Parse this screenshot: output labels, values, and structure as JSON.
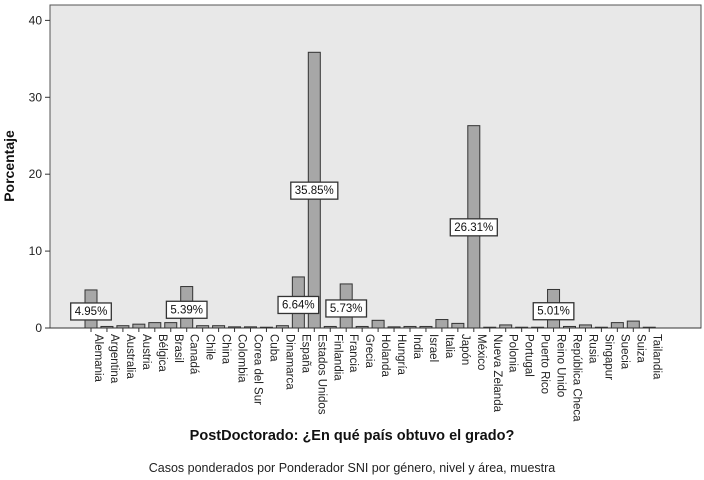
{
  "chart_data": {
    "type": "bar",
    "title": "",
    "xlabel": "PostDoctorado: ¿En qué país obtuvo el grado?",
    "ylabel": "Porcentaje",
    "footnote": "Casos ponderados por Ponderador SNI por género, nivel y área, muestra",
    "ylim": [
      0,
      42
    ],
    "yticks": [
      0,
      10,
      20,
      30,
      40
    ],
    "grid": false,
    "legend": "none",
    "bar_color": "#a7a7a7",
    "background_color": "#e8e8e8",
    "categories": [
      "Alemania",
      "Argentina",
      "Australia",
      "Austria",
      "Bélgica",
      "Brasil",
      "Canadá",
      "Chile",
      "China",
      "Colombia",
      "Corea del Sur",
      "Cuba",
      "Dinamarca",
      "España",
      "Estados Unidos",
      "Finlandia",
      "Francia",
      "Grecia",
      "Holanda",
      "Hungría",
      "India",
      "Israel",
      "Italia",
      "Japón",
      "México",
      "Nueva Zelanda",
      "Polonia",
      "Portugal",
      "Puerto Rico",
      "Reino Unido",
      "República Checa",
      "Rusia",
      "Singapur",
      "Suecia",
      "Suiza",
      "Tailandia"
    ],
    "values": [
      4.95,
      0.2,
      0.3,
      0.5,
      0.7,
      0.7,
      5.39,
      0.3,
      0.3,
      0.15,
      0.15,
      0.1,
      0.3,
      6.64,
      35.85,
      0.2,
      5.73,
      0.2,
      1.0,
      0.15,
      0.2,
      0.2,
      1.1,
      0.6,
      26.31,
      0.1,
      0.4,
      0.1,
      0.1,
      5.01,
      0.2,
      0.4,
      0.1,
      0.7,
      0.9,
      0.1
    ],
    "data_labels": [
      {
        "category": "Alemania",
        "text": "4.95%"
      },
      {
        "category": "Canadá",
        "text": "5.39%"
      },
      {
        "category": "España",
        "text": "6.64%"
      },
      {
        "category": "Estados Unidos",
        "text": "35.85%"
      },
      {
        "category": "Francia",
        "text": "5.73%"
      },
      {
        "category": "México",
        "text": "26.31%"
      },
      {
        "category": "Reino Unido",
        "text": "5.01%"
      }
    ]
  }
}
